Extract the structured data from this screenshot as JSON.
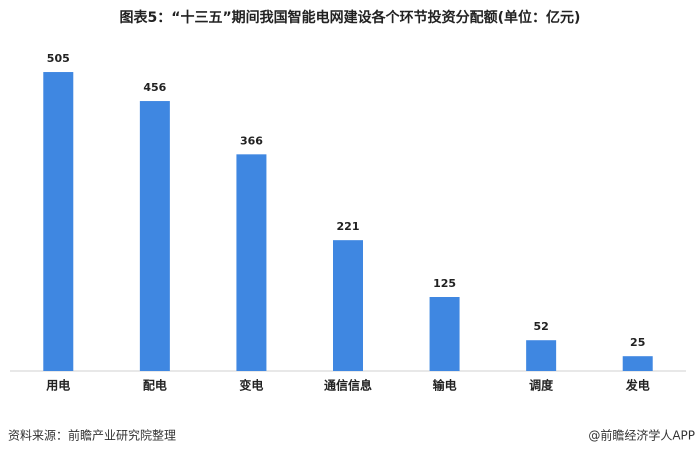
{
  "chart_data": {
    "type": "bar",
    "title": "图表5：“十三五”期间我国智能电网建设各个环节投资分配额(单位：亿元)",
    "categories": [
      "用电",
      "配电",
      "变电",
      "通信信息",
      "输电",
      "调度",
      "发电"
    ],
    "values": [
      505,
      456,
      366,
      221,
      125,
      52,
      25
    ],
    "color": "#3f87e1"
  },
  "footer": {
    "source": "资料来源：前瞻产业研究院整理",
    "credit": "@前瞻经济学人APP"
  }
}
